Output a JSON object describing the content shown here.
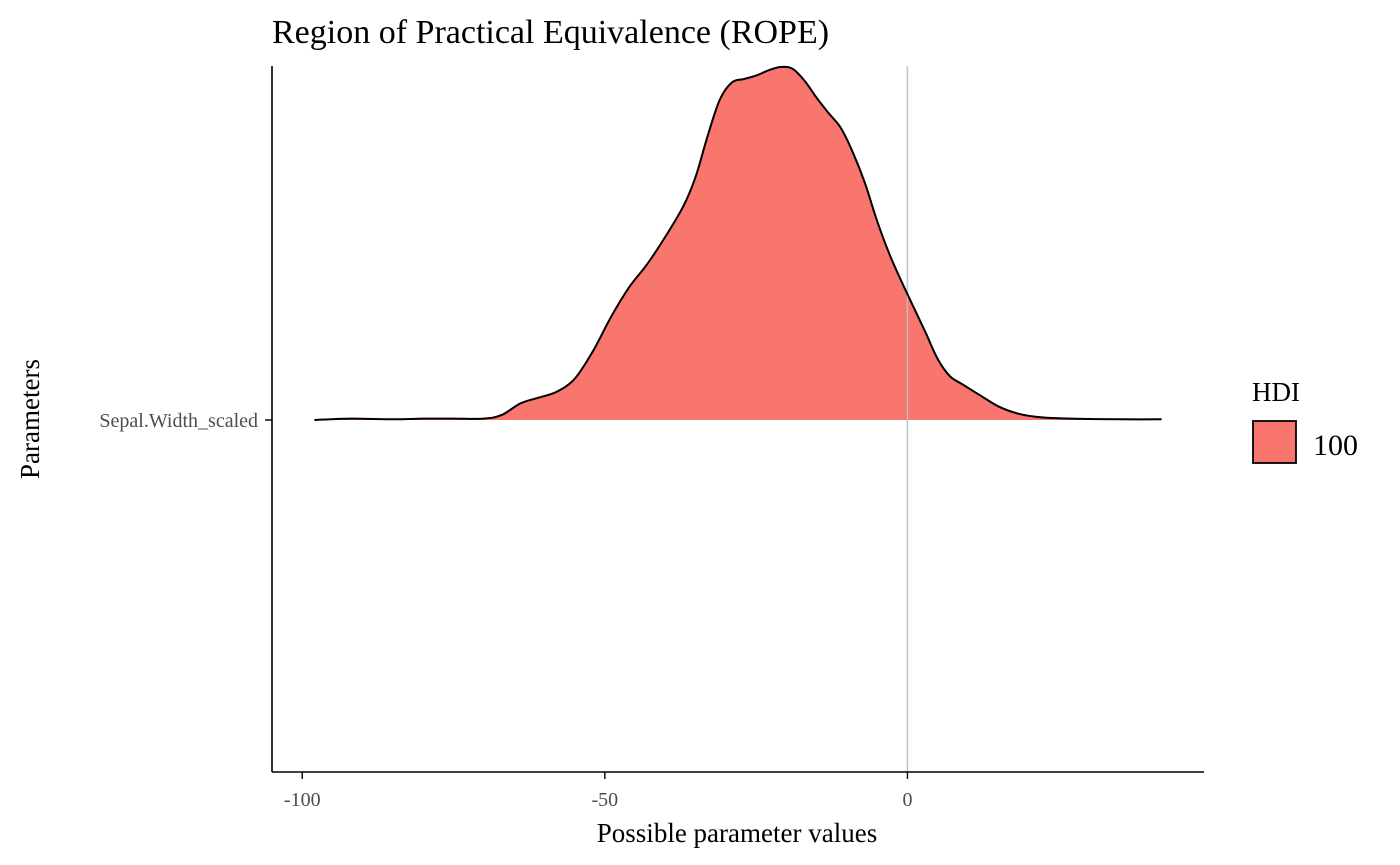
{
  "chart_data": {
    "type": "area",
    "title": "Region of Practical Equivalence (ROPE)",
    "xlabel": "Possible parameter values",
    "ylabel": "Parameters",
    "xlim": [
      -105,
      49
    ],
    "x_ticks": [
      {
        "value": -100,
        "label": "-100"
      },
      {
        "value": -50,
        "label": "-50"
      },
      {
        "value": 0,
        "label": "0"
      }
    ],
    "parameters": [
      "Sepal.Width_scaled"
    ],
    "reference_line": 0,
    "grid": false,
    "legend": {
      "title": "HDI",
      "position": "right",
      "entries": [
        {
          "label": "100",
          "color": "#F8766D"
        }
      ]
    },
    "series": [
      {
        "name": "Sepal.Width_scaled",
        "hdi": "100",
        "color": "#F8766D",
        "x": [
          -98,
          -92,
          -85,
          -80,
          -75,
          -70,
          -67,
          -64,
          -61,
          -58,
          -55,
          -52,
          -49,
          -46,
          -43,
          -40,
          -37,
          -35,
          -33,
          -31,
          -29,
          -27,
          -25,
          -23,
          -21,
          -19,
          -17,
          -15,
          -13,
          -11,
          -9,
          -7,
          -5,
          -3,
          -1,
          1,
          3,
          5,
          7,
          9,
          12,
          15,
          18,
          21,
          25,
          30,
          35,
          42
        ],
        "density": [
          0.0,
          0.004,
          0.002,
          0.004,
          0.004,
          0.004,
          0.015,
          0.048,
          0.065,
          0.082,
          0.12,
          0.2,
          0.3,
          0.387,
          0.455,
          0.535,
          0.625,
          0.71,
          0.83,
          0.935,
          0.985,
          0.995,
          1.005,
          1.02,
          1.03,
          1.025,
          0.99,
          0.94,
          0.895,
          0.852,
          0.78,
          0.69,
          0.58,
          0.485,
          0.405,
          0.33,
          0.255,
          0.178,
          0.128,
          0.105,
          0.072,
          0.04,
          0.02,
          0.01,
          0.005,
          0.003,
          0.002,
          0.002
        ]
      }
    ]
  }
}
